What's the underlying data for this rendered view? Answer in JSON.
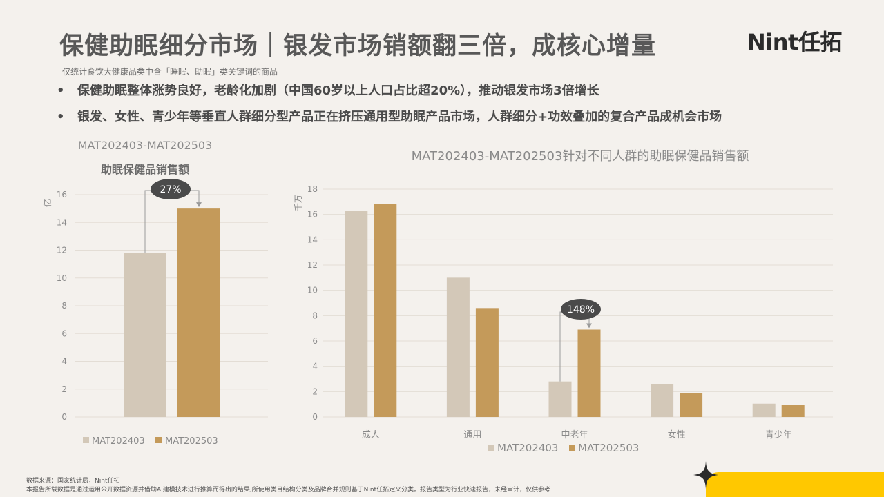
{
  "header": {
    "title": "保健助眠细分市场｜银发市场销额翻三倍，成核心增量",
    "subtitle": "仅统计食饮大健康品类中含「睡眠、助眠」类关键词的商品",
    "logo": "Nint任拓"
  },
  "bullets": [
    "保健助眠整体涨势良好，老龄化加剧（中国60岁以上人口占比超20%），推动银发市场3倍增长",
    "银发、女性、青少年等垂直人群细分型产品正在挤压通用型助眠产品市场，人群细分+功效叠加的复合产品成机会市场"
  ],
  "bullet_marker": "•",
  "colors": {
    "light": "#d3c8b8",
    "dark": "#c49a5a"
  },
  "chart_data": [
    {
      "type": "bar",
      "title": "MAT202403-MAT202503",
      "subtitle": "助眠保健品销售额",
      "ylabel": "亿",
      "ylim": [
        0,
        16
      ],
      "yticks": [
        "0",
        "2",
        "4",
        "6",
        "8",
        "10",
        "12",
        "14",
        "16"
      ],
      "categories": [
        "MAT202403",
        "MAT202503"
      ],
      "values": [
        11.8,
        15.0
      ],
      "legend": [
        "MAT202403",
        "MAT202503"
      ],
      "annotation": "27%"
    },
    {
      "type": "bar",
      "title": "MAT202403-MAT202503针对不同人群的助眠保健品销售额",
      "ylabel": "千万",
      "ylim": [
        0,
        18
      ],
      "yticks": [
        "0",
        "2",
        "4",
        "6",
        "8",
        "10",
        "12",
        "14",
        "16",
        "18"
      ],
      "categories": [
        "成人",
        "通用",
        "中老年",
        "女性",
        "青少年"
      ],
      "series": [
        {
          "name": "MAT202403",
          "values": [
            16.3,
            11.0,
            2.8,
            2.6,
            1.05
          ]
        },
        {
          "name": "MAT202503",
          "values": [
            16.8,
            8.6,
            6.9,
            1.9,
            0.95
          ]
        }
      ],
      "annotation": "148%"
    }
  ],
  "footer": {
    "source": "数据来源：国家统计局，Nint任拓",
    "disclaimer": "本报告所载数据是通过运用公开数据资源并借助AI建模技术进行推算而得出的结果,所使用类目结构分类及品牌合并规则基于Nint任拓定义分类。报告类型为行业快速报告，未经审计，仅供参考"
  }
}
